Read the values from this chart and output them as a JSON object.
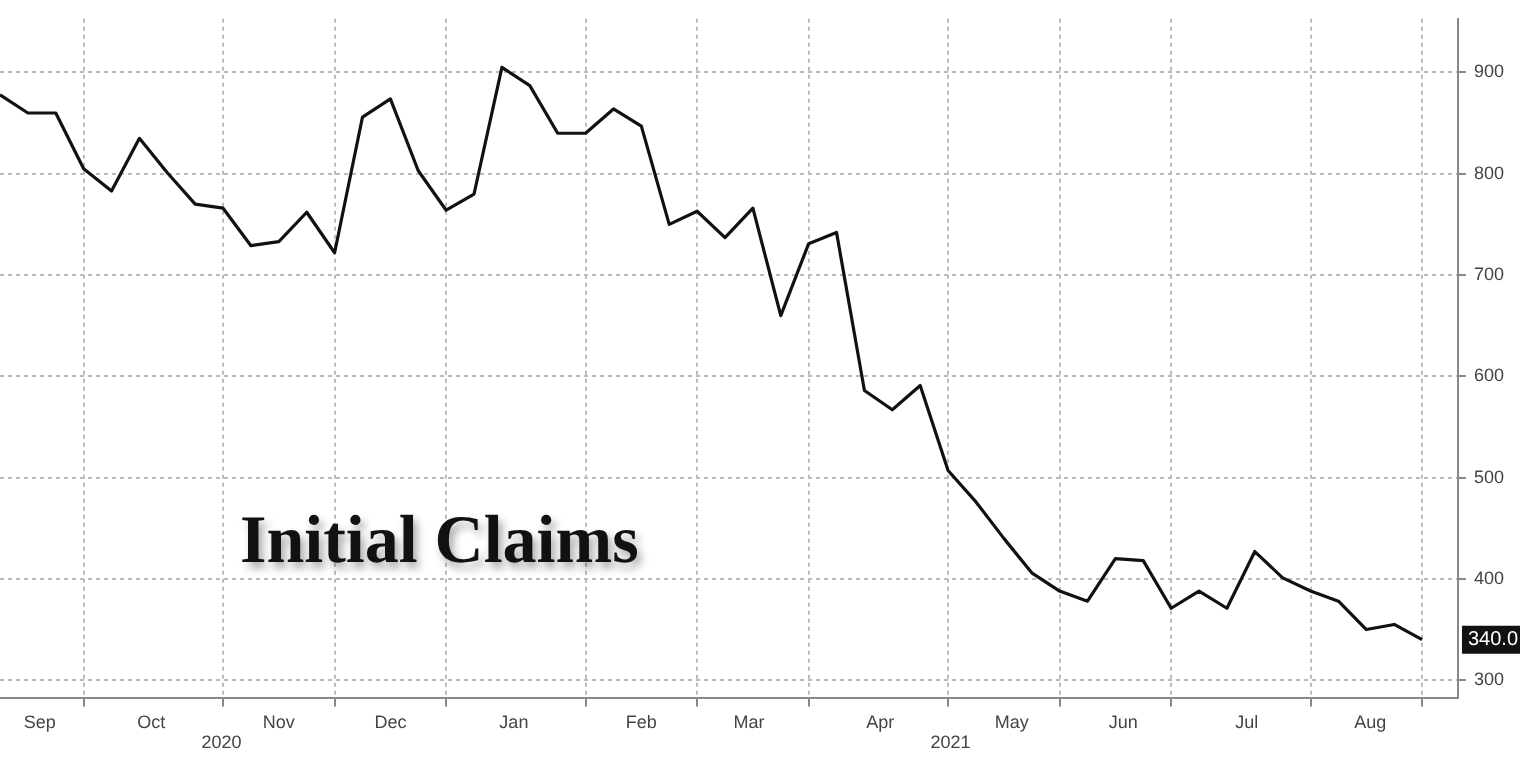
{
  "chart_data": {
    "type": "line",
    "title": "Initial Claims",
    "x": [
      "2020-08-29",
      "2020-09-05",
      "2020-09-12",
      "2020-09-19",
      "2020-09-26",
      "2020-10-03",
      "2020-10-10",
      "2020-10-17",
      "2020-10-24",
      "2020-10-31",
      "2020-11-07",
      "2020-11-14",
      "2020-11-21",
      "2020-11-28",
      "2020-12-05",
      "2020-12-12",
      "2020-12-19",
      "2020-12-26",
      "2021-01-02",
      "2021-01-09",
      "2021-01-16",
      "2021-01-23",
      "2021-01-30",
      "2021-02-06",
      "2021-02-13",
      "2021-02-20",
      "2021-02-27",
      "2021-03-06",
      "2021-03-13",
      "2021-03-20",
      "2021-03-27",
      "2021-04-03",
      "2021-04-10",
      "2021-04-17",
      "2021-04-24",
      "2021-05-01",
      "2021-05-08",
      "2021-05-15",
      "2021-05-22",
      "2021-05-29",
      "2021-06-05",
      "2021-06-12",
      "2021-06-19",
      "2021-06-26",
      "2021-07-03",
      "2021-07-10",
      "2021-07-17",
      "2021-07-24",
      "2021-07-31",
      "2021-08-07",
      "2021-08-14",
      "2021-08-21"
    ],
    "series": [
      {
        "color": "#111111",
        "values": [
          878,
          860,
          860,
          805,
          783,
          835,
          801,
          770,
          766,
          729,
          733,
          762,
          722,
          856,
          874,
          803,
          764,
          780,
          905,
          887,
          840,
          840,
          864,
          847,
          750,
          763,
          737,
          766,
          660,
          731,
          742,
          586,
          567,
          591,
          507,
          476,
          440,
          406,
          388,
          378,
          420,
          418,
          371,
          388,
          371,
          427,
          401,
          388,
          378,
          350,
          355,
          340
        ]
      }
    ],
    "xlim": [
      "2020-08-29",
      "2021-08-30"
    ],
    "xticks": [
      {
        "value": "2020-09-08",
        "label": "Sep"
      },
      {
        "value": "2020-09-19",
        "label": null
      },
      {
        "value": "2020-10-06",
        "label": "Oct"
      },
      {
        "value": "2020-10-24",
        "label": null
      },
      {
        "value": "2020-11-07",
        "label": "Nov"
      },
      {
        "value": "2020-11-21",
        "label": null
      },
      {
        "value": "2020-12-05",
        "label": "Dec"
      },
      {
        "value": "2020-12-19",
        "label": null
      },
      {
        "value": "2021-01-05",
        "label": "Jan"
      },
      {
        "value": "2021-01-23",
        "label": null
      },
      {
        "value": "2021-02-06",
        "label": "Feb"
      },
      {
        "value": "2021-02-20",
        "label": null
      },
      {
        "value": "2021-03-05",
        "label": "Mar"
      },
      {
        "value": "2021-03-20",
        "label": null
      },
      {
        "value": "2021-04-07",
        "label": "Apr"
      },
      {
        "value": "2021-04-24",
        "label": null
      },
      {
        "value": "2021-05-10",
        "label": "May"
      },
      {
        "value": "2021-05-22",
        "label": null
      },
      {
        "value": "2021-06-07",
        "label": "Jun"
      },
      {
        "value": "2021-06-19",
        "label": null
      },
      {
        "value": "2021-07-08",
        "label": "Jul"
      },
      {
        "value": "2021-07-24",
        "label": null
      },
      {
        "value": "2021-08-08",
        "label": "Aug"
      },
      {
        "value": "2021-08-21",
        "label": null
      }
    ],
    "ylim": [
      282,
      953
    ],
    "yticks": [
      300,
      400,
      500,
      600,
      700,
      800,
      900
    ],
    "grid": true,
    "marker": "none",
    "line_style": "solid",
    "annotations": [
      {
        "text": "340.0",
        "x": "2021-08-21",
        "y": 340
      },
      "2020",
      "2021"
    ]
  }
}
